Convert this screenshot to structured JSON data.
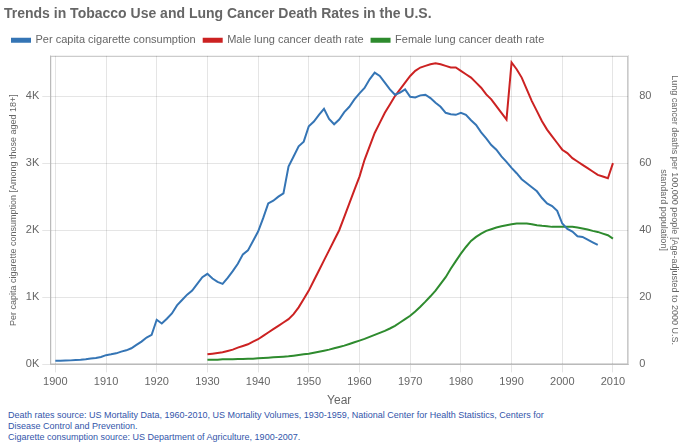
{
  "chart_data": {
    "type": "line",
    "title": "Trends in Tobacco Use and Lung Cancer Death Rates in the U.S.",
    "xlabel": "Year",
    "ylabel": "Per capita cigarette consumption [Among those aged 18+]",
    "y2label": "Lung cancer deaths per 100,000 people [Age-adjusted to 2000 U.S.\nstandard population]",
    "annotations": [
      "Death rates source: US Mortality Data, 1960-2010, US Mortality Volumes, 1930-1959, National Center for Health Statistics, Centers for\nDisease Control and Prevention.\nCigarette consumption source: US Department of Agriculture, 1900-2007."
    ],
    "series": [
      {
        "name": "Per capita cigarette consumption",
        "color": "#3575b5",
        "x": [
          1900,
          1901,
          1902,
          1903,
          1904,
          1905,
          1906,
          1907,
          1908,
          1909,
          1910,
          1911,
          1912,
          1913,
          1914,
          1915,
          1916,
          1917,
          1918,
          1919,
          1920,
          1921,
          1922,
          1923,
          1924,
          1925,
          1926,
          1927,
          1928,
          1929,
          1930,
          1931,
          1932,
          1933,
          1934,
          1935,
          1936,
          1937,
          1938,
          1939,
          1940,
          1941,
          1942,
          1943,
          1944,
          1945,
          1946,
          1947,
          1948,
          1949,
          1950,
          1951,
          1952,
          1953,
          1954,
          1955,
          1956,
          1957,
          1958,
          1959,
          1960,
          1961,
          1962,
          1963,
          1964,
          1965,
          1966,
          1967,
          1968,
          1969,
          1970,
          1971,
          1972,
          1973,
          1974,
          1975,
          1976,
          1977,
          1978,
          1979,
          1980,
          1981,
          1982,
          1983,
          1984,
          1985,
          1986,
          1987,
          1988,
          1989,
          1990,
          1991,
          1992,
          1993,
          1994,
          1995,
          1996,
          1997,
          1998,
          1999,
          2000,
          2001,
          2002,
          2003,
          2004,
          2005,
          2006,
          2007
        ],
        "values": [
          54,
          55,
          57,
          60,
          65,
          70,
          78,
          88,
          95,
          110,
          138,
          150,
          165,
          190,
          210,
          240,
          290,
          340,
          400,
          440,
          665,
          610,
          680,
          760,
          880,
          960,
          1040,
          1100,
          1200,
          1300,
          1350,
          1280,
          1230,
          1200,
          1290,
          1390,
          1500,
          1640,
          1700,
          1840,
          1980,
          2180,
          2400,
          2440,
          2500,
          2550,
          2950,
          3100,
          3250,
          3320,
          3550,
          3620,
          3720,
          3810,
          3660,
          3580,
          3650,
          3760,
          3840,
          3950,
          4040,
          4120,
          4250,
          4350,
          4300,
          4200,
          4100,
          4020,
          4050,
          4100,
          3990,
          3980,
          4010,
          4020,
          3970,
          3900,
          3840,
          3750,
          3730,
          3720,
          3750,
          3720,
          3640,
          3570,
          3460,
          3370,
          3270,
          3200,
          3100,
          3020,
          2930,
          2850,
          2760,
          2700,
          2640,
          2580,
          2480,
          2400,
          2360,
          2290,
          2100,
          2020,
          1980,
          1910,
          1900,
          1860,
          1820,
          1780
        ]
      },
      {
        "name": "Male lung cancer death rate",
        "color": "#cc2222",
        "axis": "y2",
        "x": [
          1930,
          1931,
          1932,
          1933,
          1934,
          1935,
          1936,
          1937,
          1938,
          1939,
          1940,
          1941,
          1942,
          1943,
          1944,
          1945,
          1946,
          1947,
          1948,
          1949,
          1950,
          1951,
          1952,
          1953,
          1954,
          1955,
          1956,
          1957,
          1958,
          1959,
          1960,
          1961,
          1962,
          1963,
          1964,
          1965,
          1966,
          1967,
          1968,
          1969,
          1970,
          1971,
          1972,
          1973,
          1974,
          1975,
          1976,
          1977,
          1978,
          1979,
          1980,
          1981,
          1982,
          1983,
          1984,
          1985,
          1986,
          1987,
          1988,
          1989,
          1990,
          1991,
          1992,
          1993,
          1994,
          1995,
          1996,
          1997,
          1998,
          1999,
          2000,
          2001,
          2002,
          2003,
          2004,
          2005,
          2006,
          2007,
          2008,
          2009,
          2010
        ],
        "values": [
          3.0,
          3.2,
          3.4,
          3.6,
          4.0,
          4.4,
          5.0,
          5.5,
          6.0,
          6.8,
          7.5,
          8.5,
          9.5,
          10.5,
          11.5,
          12.5,
          13.5,
          15.0,
          17.0,
          19.5,
          22.0,
          25.0,
          28.0,
          31.0,
          34.0,
          37.0,
          40.0,
          44.0,
          48.0,
          52.0,
          56.0,
          61.0,
          65.0,
          69.0,
          72.0,
          75.0,
          77.5,
          80.0,
          82.0,
          84.0,
          86.0,
          87.5,
          88.5,
          89.0,
          89.5,
          89.8,
          89.5,
          89.0,
          88.5,
          88.5,
          87.5,
          86.5,
          85.5,
          84.0,
          82.5,
          80.5,
          79.0,
          77.0,
          75.0,
          73.0,
          90.0,
          88.0,
          85.5,
          82.0,
          78.5,
          75.5,
          72.5,
          70.0,
          68.0,
          66.0,
          64.0,
          63.0,
          61.5,
          60.5,
          59.5,
          58.5,
          57.5,
          56.5,
          56.0,
          55.5,
          60.0
        ]
      },
      {
        "name": "Female lung cancer death rate",
        "color": "#2e8b2e",
        "axis": "y2",
        "x": [
          1930,
          1931,
          1932,
          1933,
          1934,
          1935,
          1936,
          1937,
          1938,
          1939,
          1940,
          1941,
          1942,
          1943,
          1944,
          1945,
          1946,
          1947,
          1948,
          1949,
          1950,
          1951,
          1952,
          1953,
          1954,
          1955,
          1956,
          1957,
          1958,
          1959,
          1960,
          1961,
          1962,
          1963,
          1964,
          1965,
          1966,
          1967,
          1968,
          1969,
          1970,
          1971,
          1972,
          1973,
          1974,
          1975,
          1976,
          1977,
          1978,
          1979,
          1980,
          1981,
          1982,
          1983,
          1984,
          1985,
          1986,
          1987,
          1988,
          1989,
          1990,
          1991,
          1992,
          1993,
          1994,
          1995,
          1996,
          1997,
          1998,
          1999,
          2000,
          2001,
          2002,
          2003,
          2004,
          2005,
          2006,
          2007,
          2008,
          2009,
          2010
        ],
        "values": [
          1.4,
          1.4,
          1.4,
          1.5,
          1.5,
          1.5,
          1.6,
          1.6,
          1.7,
          1.7,
          1.8,
          1.9,
          2.0,
          2.1,
          2.2,
          2.3,
          2.4,
          2.6,
          2.8,
          3.0,
          3.2,
          3.5,
          3.8,
          4.1,
          4.4,
          4.8,
          5.2,
          5.6,
          6.1,
          6.6,
          7.1,
          7.6,
          8.2,
          8.8,
          9.4,
          10.0,
          10.7,
          11.5,
          12.5,
          13.5,
          14.5,
          15.8,
          17.2,
          18.7,
          20.3,
          22.0,
          24.0,
          26.0,
          28.5,
          30.8,
          33.0,
          35.0,
          36.8,
          38.0,
          39.0,
          39.8,
          40.3,
          40.8,
          41.2,
          41.5,
          41.8,
          42.0,
          42.0,
          42.0,
          41.8,
          41.5,
          41.3,
          41.2,
          41.0,
          41.0,
          41.0,
          41.0,
          41.0,
          40.8,
          40.5,
          40.2,
          39.8,
          39.5,
          39.0,
          38.5,
          37.5
        ]
      }
    ],
    "xlim": [
      1899,
      2013
    ],
    "xticks": [
      1900,
      1910,
      1920,
      1930,
      1940,
      1950,
      1960,
      1970,
      1980,
      1990,
      2000,
      2010
    ],
    "ylim": [
      0,
      4600
    ],
    "yticks": [
      {
        "value": 0,
        "label": "0K"
      },
      {
        "value": 1000,
        "label": "1K"
      },
      {
        "value": 2000,
        "label": "2K"
      },
      {
        "value": 3000,
        "label": "3K"
      },
      {
        "value": 4000,
        "label": "4K"
      }
    ],
    "y2lim": [
      0,
      92
    ],
    "y2ticks": [
      0,
      20,
      40,
      60,
      80
    ],
    "grid": true,
    "legend": "upper left"
  }
}
